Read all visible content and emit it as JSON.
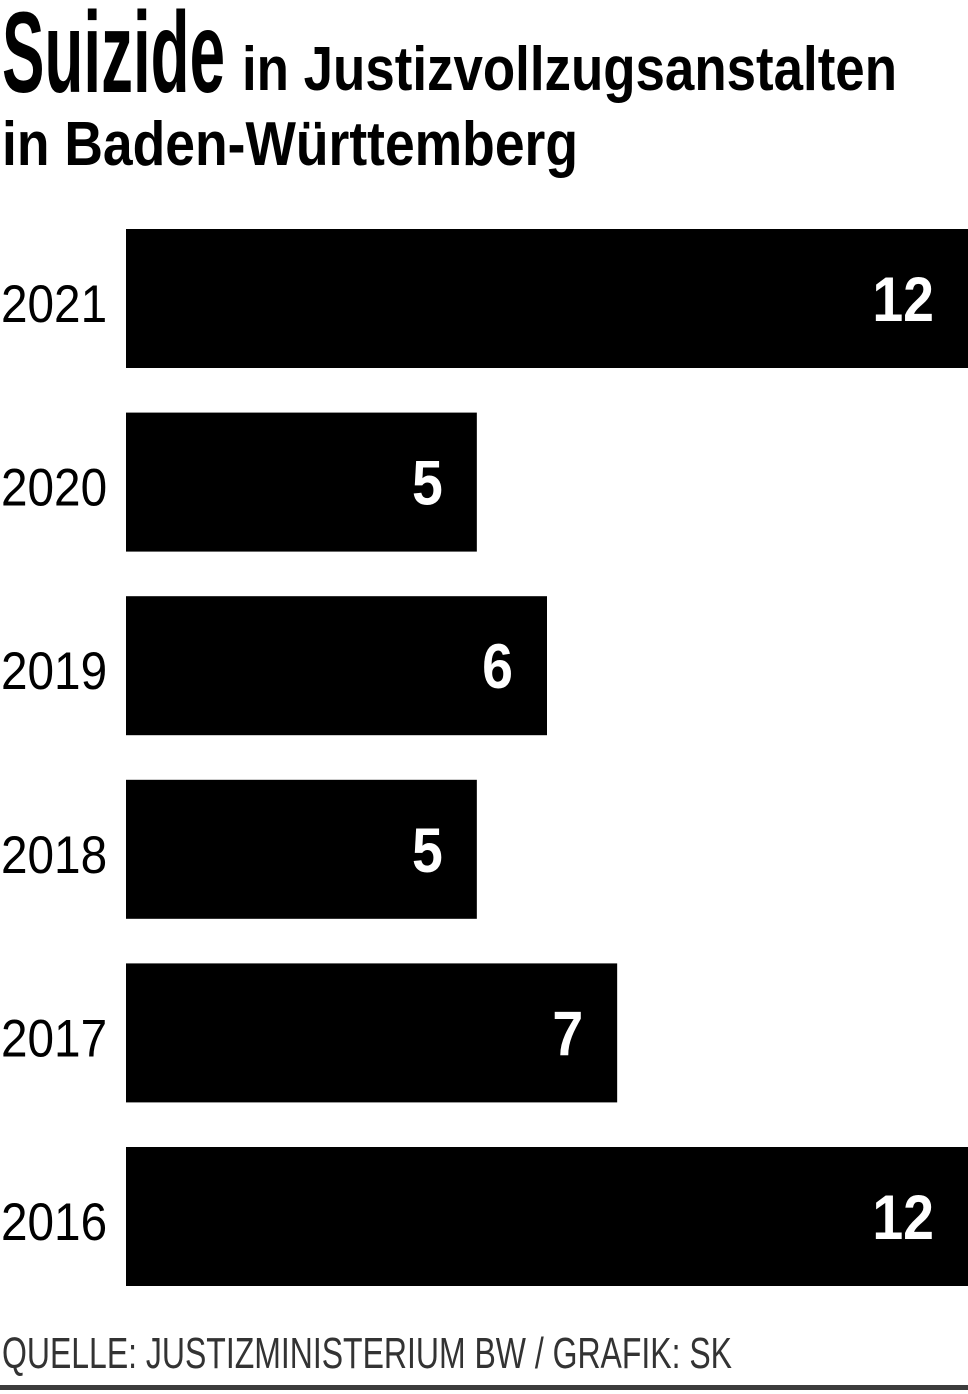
{
  "chart_data": {
    "type": "bar",
    "horizontal": true,
    "title": {
      "lead": "Suizide",
      "line1": "in Justizvollzugsanstalten",
      "line2": "in Baden-Württemberg"
    },
    "categories": [
      "2021",
      "2020",
      "2019",
      "2018",
      "2017",
      "2016"
    ],
    "values": [
      12,
      5,
      6,
      5,
      7,
      12
    ],
    "xlim": [
      0,
      12
    ],
    "grid": false,
    "show_legend": false,
    "source": "QUELLE: JUSTIZMINISTERIUM BW / GRAFIK: SK"
  },
  "colors": {
    "background": "#ffffff",
    "text": "#000000",
    "bar": "#000000",
    "value_label": "#ffffff",
    "source_text": "#333333",
    "rule": "#3c3c3c"
  }
}
